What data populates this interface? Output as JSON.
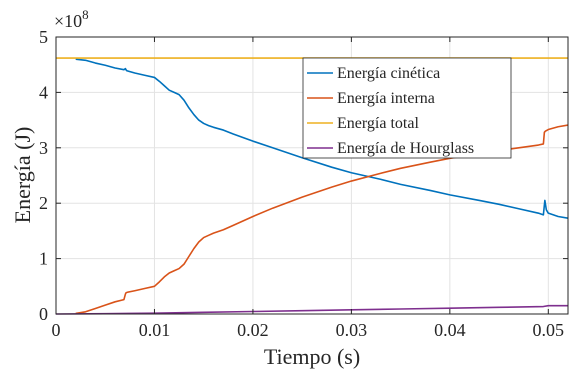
{
  "chart_data": {
    "type": "line",
    "xlabel": "Tiempo (s)",
    "ylabel": "Energía  (J)",
    "y_multiplier": "×10",
    "y_exponent": "8",
    "xlim": [
      0,
      0.052
    ],
    "ylim": [
      0,
      5
    ],
    "x_ticks": [
      0,
      0.01,
      0.02,
      0.03,
      0.04,
      0.05
    ],
    "x_tick_labels": [
      "0",
      "0.01",
      "0.02",
      "0.03",
      "0.04",
      "0.05"
    ],
    "y_ticks": [
      0,
      1,
      2,
      3,
      4,
      5
    ],
    "y_tick_labels": [
      "0",
      "1",
      "2",
      "3",
      "4",
      "5"
    ],
    "grid": true,
    "legend_position": "top-right",
    "series": [
      {
        "name": "Energía cinética",
        "color": "#0072BD",
        "x": [
          0.002,
          0.003,
          0.004,
          0.005,
          0.006,
          0.0069,
          0.00705,
          0.0071,
          0.0072,
          0.008,
          0.009,
          0.01,
          0.0105,
          0.011,
          0.0115,
          0.012,
          0.0125,
          0.013,
          0.0135,
          0.014,
          0.0145,
          0.015,
          0.0155,
          0.016,
          0.017,
          0.018,
          0.02,
          0.022,
          0.025,
          0.028,
          0.03,
          0.033,
          0.035,
          0.038,
          0.04,
          0.043,
          0.045,
          0.047,
          0.049,
          0.0495,
          0.04965,
          0.0498,
          0.05,
          0.051,
          0.052
        ],
        "y": [
          4.6,
          4.58,
          4.53,
          4.49,
          4.44,
          4.41,
          4.43,
          4.41,
          4.39,
          4.35,
          4.31,
          4.27,
          4.2,
          4.12,
          4.04,
          4.0,
          3.96,
          3.86,
          3.72,
          3.6,
          3.5,
          3.44,
          3.4,
          3.37,
          3.32,
          3.25,
          3.12,
          3.0,
          2.82,
          2.65,
          2.55,
          2.43,
          2.34,
          2.23,
          2.15,
          2.05,
          1.98,
          1.9,
          1.82,
          1.79,
          2.05,
          1.88,
          1.82,
          1.76,
          1.73
        ]
      },
      {
        "name": "Energía interna",
        "color": "#D95319",
        "x": [
          0.002,
          0.003,
          0.004,
          0.005,
          0.006,
          0.0069,
          0.00705,
          0.0071,
          0.0072,
          0.008,
          0.009,
          0.01,
          0.0105,
          0.011,
          0.0115,
          0.012,
          0.0125,
          0.013,
          0.0135,
          0.014,
          0.0145,
          0.015,
          0.0155,
          0.016,
          0.017,
          0.018,
          0.02,
          0.022,
          0.025,
          0.028,
          0.03,
          0.033,
          0.035,
          0.038,
          0.04,
          0.043,
          0.045,
          0.047,
          0.049,
          0.0495,
          0.0496,
          0.0497,
          0.05,
          0.051,
          0.052
        ],
        "y": [
          0.01,
          0.04,
          0.1,
          0.16,
          0.22,
          0.26,
          0.36,
          0.38,
          0.39,
          0.42,
          0.46,
          0.5,
          0.58,
          0.67,
          0.74,
          0.78,
          0.82,
          0.9,
          1.04,
          1.18,
          1.3,
          1.38,
          1.42,
          1.46,
          1.52,
          1.6,
          1.76,
          1.91,
          2.11,
          2.29,
          2.4,
          2.54,
          2.63,
          2.74,
          2.81,
          2.9,
          2.95,
          3.0,
          3.05,
          3.07,
          3.28,
          3.3,
          3.33,
          3.38,
          3.41
        ]
      },
      {
        "name": "Energía total",
        "color": "#EDB120",
        "x": [
          0,
          0.052
        ],
        "y": [
          4.62,
          4.62
        ]
      },
      {
        "name": "Energía de Hourglass",
        "color": "#7E2F8E",
        "x": [
          0,
          0.005,
          0.01,
          0.015,
          0.02,
          0.025,
          0.03,
          0.035,
          0.04,
          0.045,
          0.0495,
          0.05,
          0.052
        ],
        "y": [
          0.0,
          0.005,
          0.015,
          0.03,
          0.045,
          0.06,
          0.075,
          0.09,
          0.105,
          0.12,
          0.135,
          0.15,
          0.15
        ]
      }
    ]
  }
}
